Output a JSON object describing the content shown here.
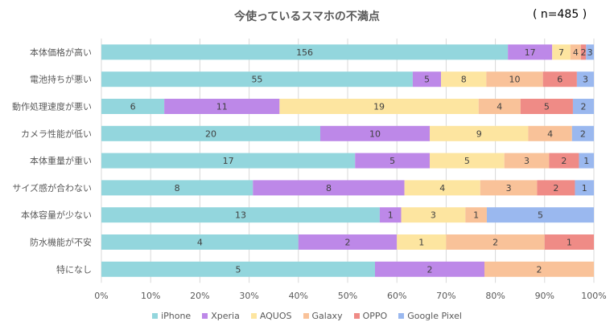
{
  "chart_data": {
    "type": "bar",
    "orientation": "horizontal",
    "stacked": "percent",
    "title": "今使っているスマホの不満点",
    "sample_size_label": "( n=485 )",
    "categories": [
      "本体価格が高い",
      "電池持ちが悪い",
      "動作処理速度が悪い",
      "カメラ性能が低い",
      "本体重量が重い",
      "サイズ感が合わない",
      "本体容量が少ない",
      "防水機能が不安",
      "特になし"
    ],
    "series": [
      {
        "name": "iPhone",
        "color": "#93d6dd",
        "values": [
          156,
          55,
          6,
          20,
          17,
          8,
          13,
          4,
          5
        ]
      },
      {
        "name": "Xperia",
        "color": "#bd88e8",
        "values": [
          17,
          5,
          11,
          10,
          5,
          8,
          1,
          2,
          2
        ]
      },
      {
        "name": "AQUOS",
        "color": "#fde5a0",
        "values": [
          7,
          8,
          19,
          9,
          5,
          4,
          3,
          1,
          0
        ]
      },
      {
        "name": "Galaxy",
        "color": "#f9c299",
        "values": [
          4,
          10,
          4,
          4,
          3,
          3,
          1,
          2,
          2
        ]
      },
      {
        "name": "OPPO",
        "color": "#ef8b86",
        "values": [
          2,
          6,
          5,
          0,
          2,
          2,
          0,
          1,
          0
        ]
      },
      {
        "name": "Google Pixel",
        "color": "#9ab8ef",
        "values": [
          3,
          3,
          2,
          2,
          1,
          1,
          5,
          0,
          0
        ]
      }
    ],
    "xaxis": {
      "min": 0,
      "max": 100,
      "ticks": [
        "0%",
        "10%",
        "20%",
        "30%",
        "40%",
        "50%",
        "60%",
        "70%",
        "80%",
        "90%",
        "100%"
      ]
    },
    "grid": true,
    "legend": "bottom"
  }
}
